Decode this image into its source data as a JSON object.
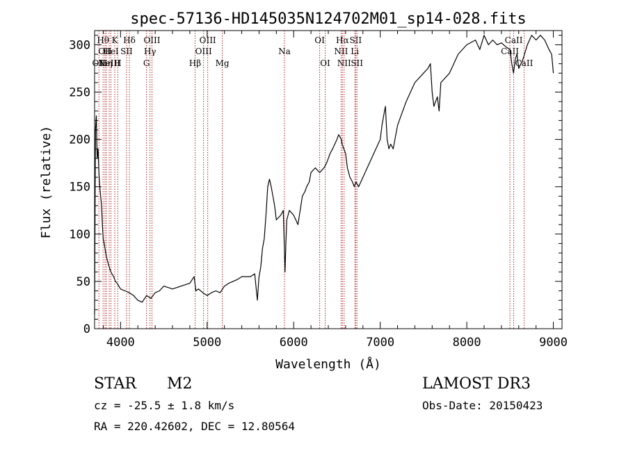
{
  "chart_data": {
    "type": "line",
    "title": "spec-57136-HD145035N124702M01_sp14-028.fits",
    "xlabel": "Wavelength (Å)",
    "ylabel": "Flux (relative)",
    "xlim": [
      3700,
      9100
    ],
    "ylim": [
      0,
      315
    ],
    "xticks": [
      4000,
      5000,
      6000,
      7000,
      8000,
      9000
    ],
    "yticks": [
      0,
      50,
      100,
      150,
      200,
      250,
      300
    ],
    "grid": false,
    "legend": "none",
    "line_color": "#000000",
    "marker_color": "#b22222",
    "series": [
      {
        "x": [
          3700,
          3710,
          3720,
          3730,
          3740,
          3750,
          3760,
          3770,
          3780,
          3790,
          3800,
          3820,
          3840,
          3860,
          3880,
          3900,
          3920,
          3940,
          3960,
          3980,
          4000,
          4050,
          4100,
          4150,
          4200,
          4250,
          4300,
          4350,
          4400,
          4450,
          4500,
          4600,
          4700,
          4800,
          4850,
          4870,
          4900,
          4950,
          5000,
          5050,
          5100,
          5150,
          5200,
          5250,
          5300,
          5350,
          5400,
          5450,
          5500,
          5550,
          5580,
          5600,
          5620,
          5640,
          5660,
          5680,
          5700,
          5720,
          5740,
          5760,
          5780,
          5800,
          5850,
          5880,
          5900,
          5910,
          5920,
          5950,
          6000,
          6050,
          6100,
          6130,
          6150,
          6180,
          6200,
          6250,
          6300,
          6350,
          6380,
          6400,
          6420,
          6450,
          6500,
          6520,
          6550,
          6560,
          6580,
          6600,
          6620,
          6650,
          6680,
          6700,
          6720,
          6750,
          6800,
          6850,
          6900,
          6950,
          7000,
          7020,
          7040,
          7060,
          7080,
          7100,
          7120,
          7150,
          7200,
          7300,
          7400,
          7500,
          7550,
          7580,
          7600,
          7620,
          7640,
          7660,
          7680,
          7700,
          7800,
          7900,
          8000,
          8100,
          8150,
          8200,
          8250,
          8300,
          8350,
          8400,
          8450,
          8500,
          8520,
          8540,
          8560,
          8580,
          8600,
          8650,
          8700,
          8750,
          8800,
          8850,
          8900,
          8950,
          8980,
          9000
        ],
        "y": [
          15,
          210,
          225,
          180,
          190,
          165,
          150,
          140,
          130,
          110,
          95,
          85,
          75,
          68,
          62,
          58,
          55,
          50,
          48,
          45,
          42,
          40,
          38,
          35,
          30,
          28,
          35,
          32,
          38,
          40,
          45,
          42,
          45,
          48,
          55,
          40,
          42,
          38,
          35,
          38,
          40,
          38,
          45,
          48,
          50,
          52,
          55,
          55,
          55,
          58,
          30,
          55,
          65,
          85,
          95,
          120,
          150,
          158,
          150,
          140,
          130,
          115,
          120,
          125,
          60,
          90,
          115,
          125,
          120,
          110,
          140,
          145,
          150,
          155,
          165,
          170,
          165,
          170,
          175,
          180,
          185,
          190,
          200,
          205,
          200,
          195,
          190,
          185,
          170,
          160,
          155,
          150,
          155,
          150,
          160,
          170,
          180,
          190,
          200,
          215,
          225,
          235,
          200,
          190,
          195,
          190,
          215,
          240,
          260,
          270,
          275,
          280,
          250,
          235,
          240,
          245,
          230,
          260,
          270,
          290,
          300,
          305,
          295,
          310,
          300,
          305,
          300,
          302,
          298,
          295,
          280,
          270,
          285,
          290,
          275,
          285,
          300,
          310,
          305,
          310,
          305,
          295,
          290,
          270
        ]
      }
    ],
    "line_markers": [
      {
        "x": 3750,
        "label": "OII",
        "row": 3
      },
      {
        "x": 3798,
        "label": "Hθ",
        "row": 1
      },
      {
        "x": 3820,
        "label": "OII",
        "row": 2
      },
      {
        "x": 3835,
        "label": "Hη",
        "row": 3
      },
      {
        "x": 3869,
        "label": "NeIII",
        "row": 3
      },
      {
        "x": 3889,
        "label": "HeI",
        "row": 2
      },
      {
        "x": 3933,
        "label": "K",
        "row": 1
      },
      {
        "x": 3968,
        "label": "H",
        "row": 3
      },
      {
        "x": 4069,
        "label": "SII",
        "row": 2
      },
      {
        "x": 4102,
        "label": "Hδ",
        "row": 1
      },
      {
        "x": 4300,
        "label": "G",
        "row": 3
      },
      {
        "x": 4340,
        "label": "Hγ",
        "row": 2
      },
      {
        "x": 4363,
        "label": "OIII",
        "row": 1
      },
      {
        "x": 4861,
        "label": "Hβ",
        "row": 3
      },
      {
        "x": 4959,
        "label": "OIII",
        "row": 2
      },
      {
        "x": 5007,
        "label": "OIII",
        "row": 1
      },
      {
        "x": 5175,
        "label": "Mg",
        "row": 3
      },
      {
        "x": 5893,
        "label": "Na",
        "row": 2
      },
      {
        "x": 6300,
        "label": "OI",
        "row": 1
      },
      {
        "x": 6364,
        "label": "OI",
        "row": 3
      },
      {
        "x": 6548,
        "label": "NII",
        "row": 2
      },
      {
        "x": 6563,
        "label": "Hα",
        "row": 1
      },
      {
        "x": 6583,
        "label": "NII",
        "row": 3
      },
      {
        "x": 6707,
        "label": "Li",
        "row": 2
      },
      {
        "x": 6716,
        "label": "SII",
        "row": 1
      },
      {
        "x": 6731,
        "label": "SII",
        "row": 3
      },
      {
        "x": 8498,
        "label": "CaII",
        "row": 2
      },
      {
        "x": 8542,
        "label": "CaII",
        "row": 1
      },
      {
        "x": 8662,
        "label": "CaII",
        "row": 3
      }
    ]
  },
  "info": {
    "class": "STAR",
    "subclass": "M2",
    "survey": "LAMOST DR3",
    "cz": "cz = -25.5 ± 1.8 km/s",
    "obs_date": "Obs-Date: 20150423",
    "coords": "RA = 220.42602, DEC =  12.80564"
  }
}
